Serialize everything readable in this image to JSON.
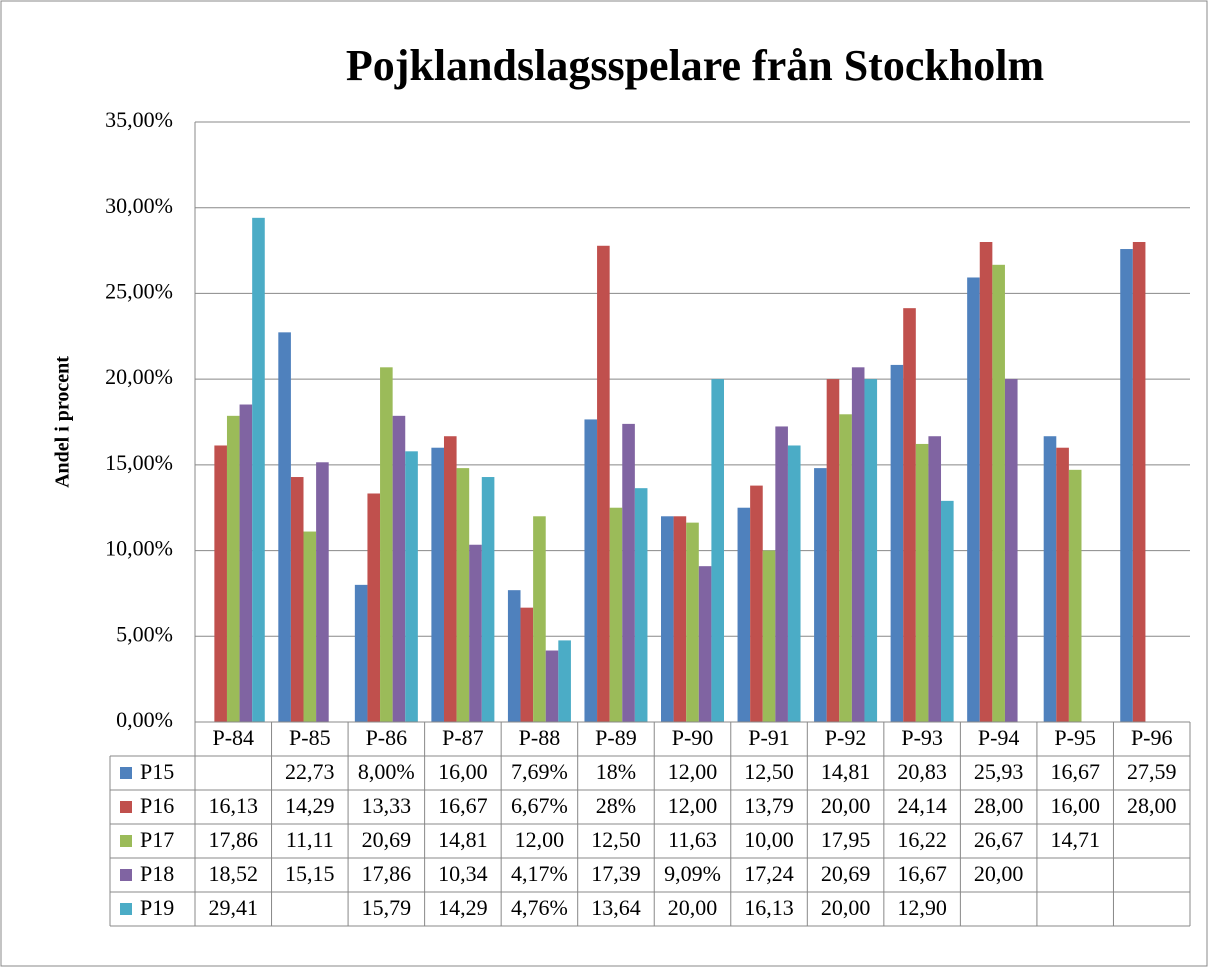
{
  "chart_data": {
    "type": "bar",
    "title": "Pojklandslagsspelare från Stockholm",
    "y_label": "Andel i procent",
    "categories": [
      "P-84",
      "P-85",
      "P-86",
      "P-87",
      "P-88",
      "P-89",
      "P-90",
      "P-91",
      "P-92",
      "P-93",
      "P-94",
      "P-95",
      "P-96"
    ],
    "series": [
      {
        "name": "P15",
        "color": "#4f81bd",
        "values": [
          null,
          22.73,
          8.0,
          16.0,
          7.69,
          17.65,
          12.0,
          12.5,
          14.81,
          20.83,
          25.93,
          16.67,
          27.59
        ],
        "value_labels": [
          null,
          "22,73",
          "8,00%",
          "16,00",
          "7,69%",
          "18%",
          "12,00",
          "12,50",
          "14,81",
          "20,83",
          "25,93",
          "16,67",
          "27,59"
        ]
      },
      {
        "name": "P16",
        "color": "#c0504d",
        "values": [
          16.13,
          14.29,
          13.33,
          16.67,
          6.67,
          27.78,
          12.0,
          13.79,
          20.0,
          24.14,
          28.0,
          16.0,
          28.0
        ],
        "value_labels": [
          "16,13",
          "14,29",
          "13,33",
          "16,67",
          "6,67%",
          "28%",
          "12,00",
          "13,79",
          "20,00",
          "24,14",
          "28,00",
          "16,00",
          "28,00"
        ]
      },
      {
        "name": "P17",
        "color": "#9bbb59",
        "values": [
          17.86,
          11.11,
          20.69,
          14.81,
          12.0,
          12.5,
          11.63,
          10.0,
          17.95,
          16.22,
          26.67,
          14.71,
          null
        ],
        "value_labels": [
          "17,86",
          "11,11",
          "20,69",
          "14,81",
          "12,00",
          "12,50",
          "11,63",
          "10,00",
          "17,95",
          "16,22",
          "26,67",
          "14,71",
          null
        ]
      },
      {
        "name": "P18",
        "color": "#8064a2",
        "values": [
          18.52,
          15.15,
          17.86,
          10.34,
          4.17,
          17.39,
          9.09,
          17.24,
          20.69,
          16.67,
          20.0,
          null,
          null
        ],
        "value_labels": [
          "18,52",
          "15,15",
          "17,86",
          "10,34",
          "4,17%",
          "17,39",
          "9,09%",
          "17,24",
          "20,69",
          "16,67",
          "20,00",
          null,
          null
        ]
      },
      {
        "name": "P19",
        "color": "#4bacc6",
        "values": [
          29.41,
          null,
          15.79,
          14.29,
          4.76,
          13.64,
          20.0,
          16.13,
          20.0,
          12.9,
          null,
          null,
          null
        ],
        "value_labels": [
          "29,41",
          null,
          "15,79",
          "14,29",
          "4,76%",
          "13,64",
          "20,00",
          "16,13",
          "20,00",
          "12,90",
          null,
          null,
          null
        ]
      }
    ],
    "ylim": [
      0,
      35
    ],
    "yticks": [
      {
        "value": 0,
        "label": "0,00%"
      },
      {
        "value": 5,
        "label": "5,00%"
      },
      {
        "value": 10,
        "label": "10,00%"
      },
      {
        "value": 15,
        "label": "15,00%"
      },
      {
        "value": 20,
        "label": "20,00%"
      },
      {
        "value": 25,
        "label": "25,00%"
      },
      {
        "value": 30,
        "label": "30,00%"
      },
      {
        "value": 35,
        "label": "35,00%"
      }
    ],
    "grid": true
  }
}
